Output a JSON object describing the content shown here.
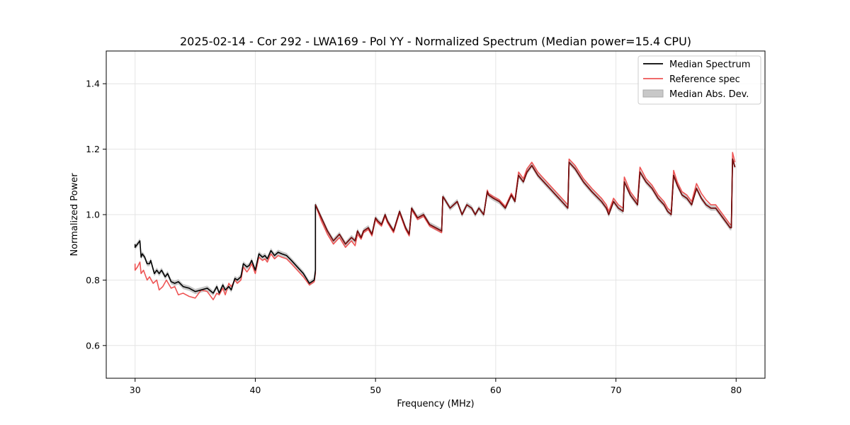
{
  "chart_data": {
    "type": "line",
    "title": "2025-02-14 - Cor 292 - LWA169 - Pol YY - Normalized Spectrum (Median power=15.4 CPU)",
    "xlabel": "Frequency (MHz)",
    "ylabel": "Normalized Power",
    "xlim": [
      27.6,
      82.4
    ],
    "ylim": [
      0.5,
      1.5
    ],
    "xticks": [
      30,
      40,
      50,
      60,
      70,
      80
    ],
    "yticks": [
      0.6,
      0.8,
      1.0,
      1.2,
      1.4
    ],
    "xtick_labels": [
      "30",
      "40",
      "50",
      "60",
      "70",
      "80"
    ],
    "ytick_labels": [
      "0.6",
      "0.8",
      "1.0",
      "1.2",
      "1.4"
    ],
    "grid": true,
    "legend_position": "top-right",
    "legend": [
      "Median Spectrum",
      "Reference spec",
      "Median Abs. Dev."
    ],
    "colors": {
      "median": "#000000",
      "reference": "#ee5555",
      "overlap": "#7a0c0c",
      "mad_fill": "#c8c8c8",
      "grid": "#e4e4e4"
    },
    "mad_halfwidth": 0.008,
    "series": [
      {
        "name": "Median Spectrum",
        "x": [
          30.0,
          30.0,
          30.4,
          30.5,
          30.6,
          30.8,
          31.0,
          31.2,
          31.3,
          31.6,
          31.8,
          32.0,
          32.2,
          32.5,
          32.7,
          33.0,
          33.3,
          33.6,
          34.0,
          34.5,
          35.0,
          35.5,
          36.0,
          36.5,
          36.8,
          37.0,
          37.3,
          37.5,
          37.8,
          38.0,
          38.3,
          38.5,
          38.8,
          39.0,
          39.3,
          39.5,
          39.7,
          40.0,
          40.3,
          40.6,
          40.8,
          41.0,
          41.3,
          41.6,
          41.9,
          42.2,
          42.6,
          43.0,
          43.5,
          44.0,
          44.5,
          44.9,
          45.0,
          45.0,
          45.5,
          46.0,
          46.5,
          47.0,
          47.5,
          48.0,
          48.3,
          48.5,
          48.8,
          49.0,
          49.4,
          49.7,
          50.0,
          50.2,
          50.5,
          50.8,
          51.0,
          51.5,
          52.0,
          52.5,
          52.8,
          53.0,
          53.5,
          54.0,
          54.5,
          55.0,
          55.5,
          55.6,
          55.7,
          56.2,
          56.8,
          57.2,
          57.6,
          58.0,
          58.3,
          58.6,
          59.0,
          59.3,
          59.4,
          59.8,
          60.3,
          60.8,
          61.3,
          61.6,
          61.9,
          62.3,
          62.6,
          63.0,
          63.5,
          64.0,
          64.5,
          65.0,
          65.5,
          66.0,
          66.1,
          66.6,
          67.3,
          68.0,
          68.8,
          69.2,
          69.4,
          69.8,
          70.2,
          70.6,
          70.7,
          71.2,
          71.6,
          71.8,
          72.0,
          72.5,
          73.0,
          73.5,
          74.0,
          74.3,
          74.6,
          74.8,
          75.1,
          75.5,
          75.9,
          76.3,
          76.7,
          77.1,
          77.5,
          77.9,
          78.3,
          78.7,
          79.1,
          79.5,
          79.6,
          79.7,
          79.9
        ],
        "y": [
          0.91,
          0.9,
          0.92,
          0.87,
          0.88,
          0.87,
          0.85,
          0.85,
          0.86,
          0.82,
          0.83,
          0.82,
          0.83,
          0.81,
          0.82,
          0.795,
          0.79,
          0.795,
          0.78,
          0.775,
          0.765,
          0.77,
          0.775,
          0.76,
          0.78,
          0.76,
          0.785,
          0.77,
          0.78,
          0.77,
          0.805,
          0.8,
          0.81,
          0.85,
          0.84,
          0.845,
          0.86,
          0.83,
          0.88,
          0.87,
          0.875,
          0.865,
          0.89,
          0.875,
          0.885,
          0.88,
          0.875,
          0.86,
          0.84,
          0.82,
          0.79,
          0.8,
          0.83,
          1.03,
          0.99,
          0.95,
          0.92,
          0.94,
          0.91,
          0.93,
          0.92,
          0.95,
          0.93,
          0.95,
          0.96,
          0.94,
          0.99,
          0.98,
          0.97,
          1.0,
          0.98,
          0.95,
          1.01,
          0.96,
          0.94,
          1.02,
          0.99,
          1.0,
          0.97,
          0.96,
          0.95,
          1.055,
          1.05,
          1.02,
          1.04,
          1.0,
          1.03,
          1.02,
          1.0,
          1.02,
          1.0,
          1.07,
          1.06,
          1.05,
          1.04,
          1.02,
          1.06,
          1.04,
          1.12,
          1.1,
          1.13,
          1.15,
          1.12,
          1.1,
          1.08,
          1.06,
          1.04,
          1.02,
          1.16,
          1.14,
          1.1,
          1.07,
          1.04,
          1.02,
          1.0,
          1.04,
          1.02,
          1.01,
          1.1,
          1.06,
          1.04,
          1.03,
          1.13,
          1.1,
          1.08,
          1.05,
          1.03,
          1.01,
          1.0,
          1.12,
          1.09,
          1.06,
          1.05,
          1.03,
          1.08,
          1.05,
          1.03,
          1.02,
          1.02,
          1.0,
          0.98,
          0.96,
          0.96,
          1.17,
          1.145
        ]
      },
      {
        "name": "Reference spec",
        "x": [
          30.0,
          30.0,
          30.2,
          30.4,
          30.5,
          30.7,
          31.0,
          31.2,
          31.5,
          31.8,
          32.0,
          32.3,
          32.6,
          33.0,
          33.3,
          33.6,
          34.0,
          34.5,
          35.0,
          35.5,
          36.0,
          36.5,
          36.8,
          37.0,
          37.3,
          37.5,
          37.8,
          38.0,
          38.3,
          38.5,
          38.8,
          39.0,
          39.3,
          39.5,
          39.7,
          40.0,
          40.3,
          40.6,
          40.8,
          41.0,
          41.3,
          41.6,
          41.9,
          42.2,
          42.6,
          43.0,
          43.5,
          44.0,
          44.5,
          44.9,
          45.0,
          45.0,
          45.5,
          46.0,
          46.5,
          47.0,
          47.5,
          48.0,
          48.3,
          48.5,
          48.8,
          49.0,
          49.4,
          49.7,
          50.0,
          50.2,
          50.5,
          50.8,
          51.0,
          51.5,
          52.0,
          52.5,
          52.8,
          53.0,
          53.5,
          54.0,
          54.5,
          55.0,
          55.5,
          55.6,
          55.7,
          56.2,
          56.8,
          57.2,
          57.6,
          58.0,
          58.3,
          58.6,
          59.0,
          59.3,
          59.4,
          59.8,
          60.3,
          60.8,
          61.3,
          61.6,
          61.9,
          62.3,
          62.6,
          63.0,
          63.5,
          64.0,
          64.5,
          65.0,
          65.5,
          66.0,
          66.1,
          66.6,
          67.3,
          68.0,
          68.8,
          69.2,
          69.4,
          69.8,
          70.2,
          70.6,
          70.7,
          71.2,
          71.6,
          71.8,
          72.0,
          72.5,
          73.0,
          73.5,
          74.0,
          74.3,
          74.6,
          74.8,
          75.1,
          75.5,
          75.9,
          76.3,
          76.7,
          77.1,
          77.5,
          77.9,
          78.3,
          78.7,
          79.1,
          79.5,
          79.6,
          79.7,
          79.9
        ],
        "y": [
          0.85,
          0.83,
          0.84,
          0.855,
          0.82,
          0.83,
          0.8,
          0.81,
          0.79,
          0.8,
          0.77,
          0.78,
          0.8,
          0.775,
          0.78,
          0.755,
          0.76,
          0.75,
          0.745,
          0.77,
          0.765,
          0.74,
          0.76,
          0.755,
          0.775,
          0.755,
          0.79,
          0.78,
          0.8,
          0.79,
          0.8,
          0.84,
          0.825,
          0.835,
          0.85,
          0.82,
          0.87,
          0.86,
          0.865,
          0.855,
          0.88,
          0.865,
          0.875,
          0.87,
          0.865,
          0.85,
          0.83,
          0.81,
          0.785,
          0.795,
          0.82,
          1.03,
          0.98,
          0.94,
          0.91,
          0.93,
          0.9,
          0.92,
          0.905,
          0.94,
          0.925,
          0.945,
          0.955,
          0.935,
          0.985,
          0.975,
          0.965,
          0.995,
          0.975,
          0.945,
          1.005,
          0.955,
          0.935,
          1.015,
          0.985,
          0.995,
          0.965,
          0.955,
          0.945,
          1.055,
          1.05,
          1.02,
          1.04,
          1.0,
          1.03,
          1.02,
          1.0,
          1.02,
          1.0,
          1.075,
          1.065,
          1.055,
          1.045,
          1.025,
          1.065,
          1.045,
          1.13,
          1.11,
          1.14,
          1.16,
          1.13,
          1.11,
          1.09,
          1.07,
          1.05,
          1.03,
          1.17,
          1.15,
          1.11,
          1.08,
          1.05,
          1.03,
          1.01,
          1.05,
          1.03,
          1.02,
          1.115,
          1.07,
          1.05,
          1.04,
          1.145,
          1.11,
          1.09,
          1.06,
          1.04,
          1.02,
          1.01,
          1.135,
          1.1,
          1.07,
          1.06,
          1.04,
          1.095,
          1.065,
          1.045,
          1.03,
          1.03,
          1.01,
          0.99,
          0.97,
          0.97,
          1.19,
          1.16
        ]
      }
    ]
  }
}
